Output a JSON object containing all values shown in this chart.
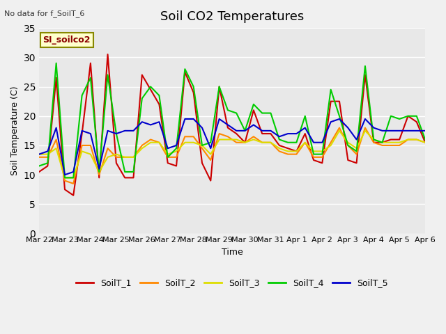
{
  "title": "Soil CO2 Temperatures",
  "ylabel": "Soil Temperature (C)",
  "xlabel": "Time",
  "top_left_text": "No data for f_SoilT_6",
  "annotation_text": "SI_soilco2",
  "ylim": [
    0,
    35
  ],
  "yticks": [
    0,
    5,
    10,
    15,
    20,
    25,
    30,
    35
  ],
  "colors": {
    "SoilT_1": "#cc0000",
    "SoilT_2": "#ff8800",
    "SoilT_3": "#dddd00",
    "SoilT_4": "#00cc00",
    "SoilT_5": "#0000cc"
  },
  "bg_color": "#e8e8e8",
  "plot_bg": "#e8e8e8",
  "grid_color": "#ffffff",
  "tick_labels": [
    "Mar 22",
    "Mar 23",
    "Mar 24",
    "Mar 25",
    "Mar 26",
    "Mar 27",
    "Mar 28",
    "Mar 29",
    "Mar 30",
    "Mar 31",
    "Apr 1",
    "Apr 2",
    "Apr 3",
    "Apr 4",
    "Apr 5",
    "Apr 6"
  ],
  "SoilT_1": [
    10.5,
    11.5,
    26.5,
    7.5,
    6.5,
    17.0,
    29.0,
    9.5,
    30.5,
    12.0,
    9.5,
    9.5,
    27.0,
    24.5,
    22.0,
    12.0,
    11.5,
    27.5,
    24.0,
    12.0,
    9.0,
    25.0,
    18.0,
    17.0,
    15.5,
    21.0,
    17.0,
    17.0,
    15.0,
    14.5,
    14.0,
    17.0,
    12.5,
    12.0,
    22.5,
    22.5,
    12.5,
    12.0,
    27.0,
    15.5,
    15.5,
    16.0,
    16.0,
    20.0,
    19.0,
    15.5
  ],
  "SoilT_2": [
    13.0,
    13.0,
    16.0,
    9.0,
    8.5,
    15.0,
    15.0,
    10.0,
    14.5,
    13.0,
    13.0,
    13.0,
    15.0,
    16.0,
    15.5,
    13.0,
    13.0,
    16.5,
    16.5,
    14.5,
    12.5,
    17.0,
    16.5,
    15.5,
    15.5,
    16.5,
    15.5,
    15.5,
    14.0,
    13.5,
    13.5,
    15.5,
    13.0,
    13.0,
    15.5,
    18.0,
    15.0,
    13.5,
    18.0,
    15.5,
    15.0,
    15.0,
    15.0,
    16.0,
    16.0,
    15.5
  ],
  "SoilT_3": [
    13.5,
    13.5,
    14.5,
    9.5,
    9.5,
    14.0,
    13.5,
    10.5,
    13.0,
    13.5,
    13.0,
    13.0,
    14.5,
    15.5,
    15.5,
    13.5,
    14.0,
    15.5,
    15.5,
    15.0,
    13.5,
    16.0,
    16.0,
    16.0,
    15.5,
    16.0,
    15.5,
    15.5,
    14.5,
    14.0,
    14.0,
    15.5,
    14.0,
    14.0,
    15.0,
    17.5,
    15.5,
    14.5,
    17.5,
    16.0,
    15.5,
    15.5,
    15.5,
    16.0,
    16.0,
    15.5
  ],
  "SoilT_4": [
    11.5,
    12.0,
    29.0,
    9.5,
    9.5,
    23.5,
    26.5,
    10.5,
    27.0,
    17.0,
    10.5,
    10.5,
    23.0,
    25.0,
    23.5,
    13.0,
    14.5,
    28.0,
    25.0,
    15.0,
    15.5,
    25.0,
    21.0,
    20.5,
    17.5,
    22.0,
    20.5,
    20.5,
    16.0,
    15.5,
    15.5,
    20.0,
    13.5,
    13.5,
    24.5,
    20.0,
    15.0,
    14.0,
    28.5,
    16.0,
    15.5,
    20.0,
    19.5,
    20.0,
    20.0,
    16.0
  ],
  "SoilT_5": [
    13.5,
    14.0,
    18.0,
    10.0,
    10.5,
    17.5,
    17.0,
    11.0,
    17.5,
    17.0,
    17.5,
    17.5,
    19.0,
    18.5,
    19.0,
    14.5,
    15.0,
    19.5,
    19.5,
    18.0,
    14.5,
    19.5,
    18.5,
    17.5,
    17.5,
    18.5,
    17.5,
    17.5,
    16.5,
    17.0,
    17.0,
    18.0,
    15.5,
    15.5,
    19.0,
    19.5,
    18.0,
    16.0,
    19.5,
    18.0,
    17.5,
    17.5,
    17.5,
    17.5,
    17.5,
    17.5
  ]
}
